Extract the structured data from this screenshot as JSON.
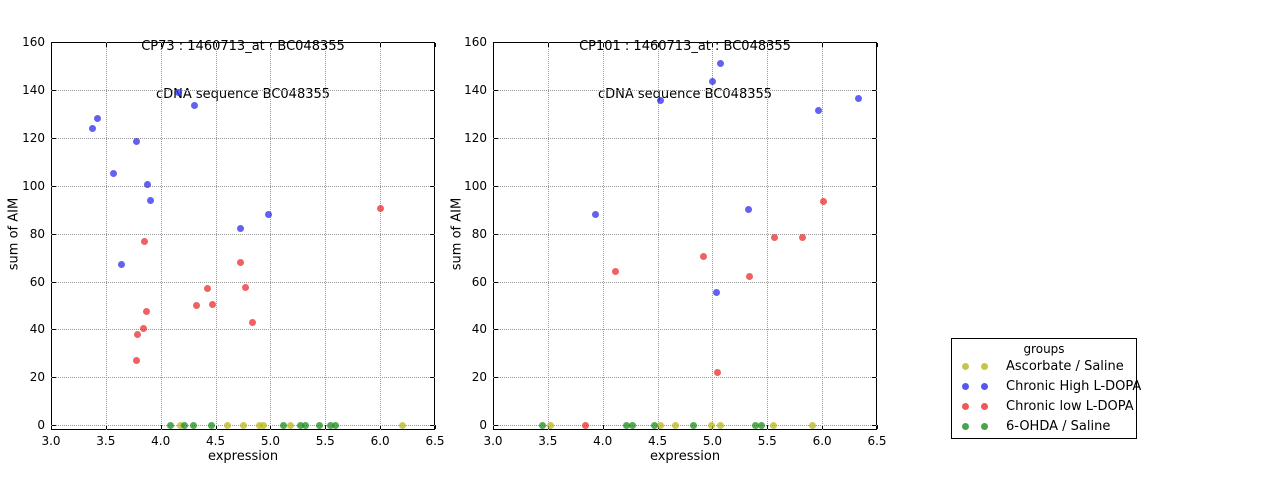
{
  "figure": {
    "background": "#ffffff",
    "grid_color": "#999999",
    "axis_color": "#000000",
    "marker_opacity": 0.75
  },
  "legend": {
    "title": "groups",
    "position": "outside-right",
    "entries": [
      {
        "label": "Ascorbate / Saline",
        "color": "#b8b81e"
      },
      {
        "label": "Chronic High L-DOPA",
        "color": "#2e2eea"
      },
      {
        "label": "Chronic low L-DOPA",
        "color": "#ea2e2e"
      },
      {
        "label": "6-OHDA / Saline",
        "color": "#1e8c1e"
      }
    ]
  },
  "chart_data": [
    {
      "id": "CP73",
      "type": "scatter",
      "title_line1": "CP73 : 1460713_at : BC048355",
      "title_line2": "cDNA sequence BC048355",
      "xlabel": "expression",
      "ylabel": "sum of AIM",
      "xlim": [
        3.0,
        6.5
      ],
      "ylim": [
        0,
        160
      ],
      "grid": true,
      "xticks": [
        "3.0",
        "3.5",
        "4.0",
        "4.5",
        "5.0",
        "5.5",
        "6.0",
        "6.5"
      ],
      "yticks": [
        "0",
        "20",
        "40",
        "60",
        "80",
        "100",
        "120",
        "140",
        "160"
      ],
      "series": [
        {
          "name": "Ascorbate / Saline",
          "color": "#b8b81e",
          "points": [
            [
              4.18,
              0
            ],
            [
              4.61,
              0
            ],
            [
              4.75,
              0
            ],
            [
              4.9,
              0
            ],
            [
              4.94,
              0
            ],
            [
              5.18,
              0
            ],
            [
              6.2,
              0
            ]
          ]
        },
        {
          "name": "Chronic High L-DOPA",
          "color": "#2e2eea",
          "points": [
            [
              3.38,
              124
            ],
            [
              3.42,
              128
            ],
            [
              3.57,
              105
            ],
            [
              3.64,
              67
            ],
            [
              3.78,
              118.5
            ],
            [
              3.88,
              100.5
            ],
            [
              3.91,
              94
            ],
            [
              4.16,
              139
            ],
            [
              4.31,
              133.5
            ],
            [
              4.73,
              82
            ],
            [
              4.98,
              88
            ]
          ]
        },
        {
          "name": "Chronic low L-DOPA",
          "color": "#ea2e2e",
          "points": [
            [
              3.78,
              27
            ],
            [
              3.79,
              38
            ],
            [
              3.84,
              40.5
            ],
            [
              3.85,
              76.5
            ],
            [
              3.87,
              47.5
            ],
            [
              4.33,
              50
            ],
            [
              4.43,
              57
            ],
            [
              4.47,
              50.5
            ],
            [
              4.73,
              68
            ],
            [
              4.77,
              57.5
            ],
            [
              4.84,
              43
            ],
            [
              6.0,
              90.5
            ]
          ]
        },
        {
          "name": "6-OHDA / Saline",
          "color": "#1e8c1e",
          "points": [
            [
              4.09,
              0
            ],
            [
              4.22,
              0
            ],
            [
              4.3,
              0
            ],
            [
              4.46,
              0
            ],
            [
              5.12,
              0
            ],
            [
              5.27,
              0
            ],
            [
              5.32,
              0
            ],
            [
              5.45,
              0
            ],
            [
              5.55,
              0
            ],
            [
              5.59,
              0
            ]
          ]
        }
      ]
    },
    {
      "id": "CP101",
      "type": "scatter",
      "title_line1": "CP101 : 1460713_at : BC048355",
      "title_line2": "cDNA sequence BC048355",
      "xlabel": "expression",
      "ylabel": "sum of AIM",
      "xlim": [
        3.0,
        6.5
      ],
      "ylim": [
        0,
        160
      ],
      "grid": true,
      "xticks": [
        "3.0",
        "3.5",
        "4.0",
        "4.5",
        "5.0",
        "5.5",
        "6.0",
        "6.5"
      ],
      "yticks": [
        "0",
        "20",
        "40",
        "60",
        "80",
        "100",
        "120",
        "140",
        "160"
      ],
      "series": [
        {
          "name": "Ascorbate / Saline",
          "color": "#b8b81e",
          "points": [
            [
              3.52,
              0
            ],
            [
              4.53,
              0
            ],
            [
              4.66,
              0
            ],
            [
              4.99,
              0
            ],
            [
              5.07,
              0
            ],
            [
              5.56,
              0
            ],
            [
              5.91,
              0
            ]
          ]
        },
        {
          "name": "Chronic High L-DOPA",
          "color": "#2e2eea",
          "points": [
            [
              3.93,
              88
            ],
            [
              4.53,
              135.5
            ],
            [
              5.0,
              143.5
            ],
            [
              5.04,
              55.5
            ],
            [
              5.07,
              151
            ],
            [
              5.33,
              90
            ],
            [
              5.97,
              131.5
            ],
            [
              6.33,
              136.5
            ]
          ]
        },
        {
          "name": "Chronic low L-DOPA",
          "color": "#ea2e2e",
          "points": [
            [
              3.84,
              0
            ],
            [
              4.12,
              64
            ],
            [
              4.92,
              70.5
            ],
            [
              5.05,
              22
            ],
            [
              5.34,
              62
            ],
            [
              5.57,
              78.5
            ],
            [
              5.82,
              78.5
            ],
            [
              6.01,
              93.5
            ]
          ]
        },
        {
          "name": "6-OHDA / Saline",
          "color": "#1e8c1e",
          "points": [
            [
              3.45,
              0
            ],
            [
              4.22,
              0
            ],
            [
              4.27,
              0
            ],
            [
              4.47,
              0
            ],
            [
              4.83,
              0
            ],
            [
              5.39,
              0
            ],
            [
              5.45,
              0
            ]
          ]
        }
      ]
    }
  ]
}
